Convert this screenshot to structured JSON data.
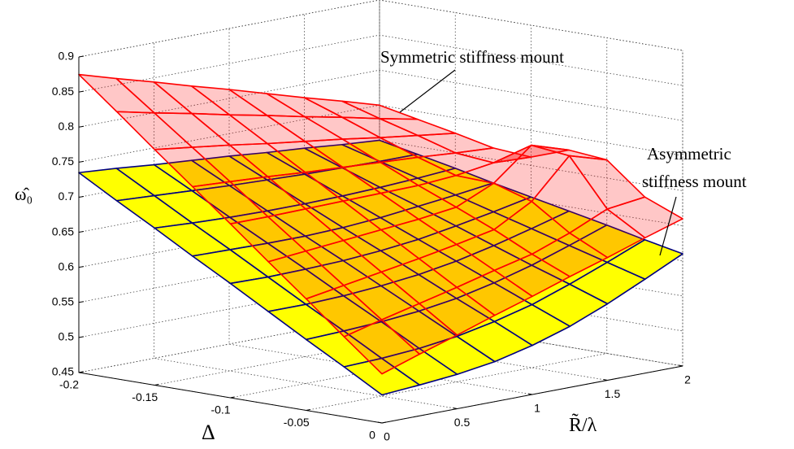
{
  "chart_data": {
    "type": "surface",
    "xlabel": "R̃/λ",
    "ylabel": "Δ",
    "zlabel": "ω̂₀",
    "x": [
      0,
      0.25,
      0.5,
      0.75,
      1,
      1.25,
      1.5,
      1.75,
      2
    ],
    "y": [
      -0.2,
      -0.175,
      -0.15,
      -0.125,
      -0.1,
      -0.075,
      -0.05,
      -0.025,
      0
    ],
    "xlim": [
      0,
      2
    ],
    "ylim": [
      -0.2,
      0
    ],
    "zlim": [
      0.45,
      0.9
    ],
    "xticks": [
      0,
      0.5,
      1,
      1.5,
      2
    ],
    "yticks": [
      -0.2,
      -0.15,
      -0.1,
      -0.05,
      0
    ],
    "zticks": [
      0.45,
      0.5,
      0.55,
      0.6,
      0.65,
      0.7,
      0.75,
      0.8,
      0.85,
      0.9
    ],
    "grid": true,
    "series": [
      {
        "color": "#ffff00",
        "edge_color": "#00007f",
        "alpha": 1,
        "z": [
          [
            0.735,
            0.731,
            0.726,
            0.722,
            0.718,
            0.713,
            0.709,
            0.704,
            0.7
          ],
          [
            0.704,
            0.701,
            0.698,
            0.695,
            0.693,
            0.691,
            0.69,
            0.689,
            0.689
          ],
          [
            0.674,
            0.671,
            0.669,
            0.668,
            0.668,
            0.669,
            0.671,
            0.674,
            0.678
          ],
          [
            0.643,
            0.642,
            0.641,
            0.641,
            0.643,
            0.647,
            0.653,
            0.659,
            0.666
          ],
          [
            0.613,
            0.612,
            0.613,
            0.615,
            0.619,
            0.625,
            0.634,
            0.644,
            0.655
          ],
          [
            0.582,
            0.582,
            0.584,
            0.588,
            0.594,
            0.603,
            0.615,
            0.629,
            0.644
          ],
          [
            0.551,
            0.553,
            0.556,
            0.561,
            0.569,
            0.581,
            0.596,
            0.614,
            0.633
          ],
          [
            0.521,
            0.523,
            0.527,
            0.534,
            0.545,
            0.559,
            0.578,
            0.599,
            0.621
          ],
          [
            0.49,
            0.494,
            0.499,
            0.507,
            0.52,
            0.537,
            0.559,
            0.584,
            0.61
          ]
        ]
      },
      {
        "color": "#ff0000",
        "edge_color": "#ff0000",
        "alpha": 0.22,
        "z": [
          [
            0.875,
            0.859,
            0.844,
            0.828,
            0.813,
            0.797,
            0.781,
            0.766,
            0.75
          ],
          [
            0.831,
            0.819,
            0.808,
            0.796,
            0.785,
            0.773,
            0.762,
            0.75,
            0.739
          ],
          [
            0.786,
            0.779,
            0.772,
            0.764,
            0.757,
            0.75,
            0.742,
            0.735,
            0.728
          ],
          [
            0.742,
            0.739,
            0.736,
            0.732,
            0.729,
            0.726,
            0.723,
            0.719,
            0.716
          ],
          [
            0.698,
            0.698,
            0.699,
            0.7,
            0.701,
            0.702,
            0.706,
            0.714,
            0.712
          ],
          [
            0.653,
            0.658,
            0.663,
            0.668,
            0.673,
            0.68,
            0.704,
            0.748,
            0.731
          ],
          [
            0.609,
            0.618,
            0.627,
            0.636,
            0.646,
            0.657,
            0.687,
            0.742,
            0.726
          ],
          [
            0.564,
            0.578,
            0.591,
            0.604,
            0.618,
            0.631,
            0.651,
            0.675,
            0.682
          ],
          [
            0.52,
            0.538,
            0.555,
            0.573,
            0.59,
            0.608,
            0.625,
            0.643,
            0.66
          ]
        ]
      }
    ],
    "annotations": [
      {
        "text": "Symmetric stiffness mount"
      },
      {
        "text": [
          "Asymmetric",
          "stiffness mount"
        ]
      }
    ]
  }
}
